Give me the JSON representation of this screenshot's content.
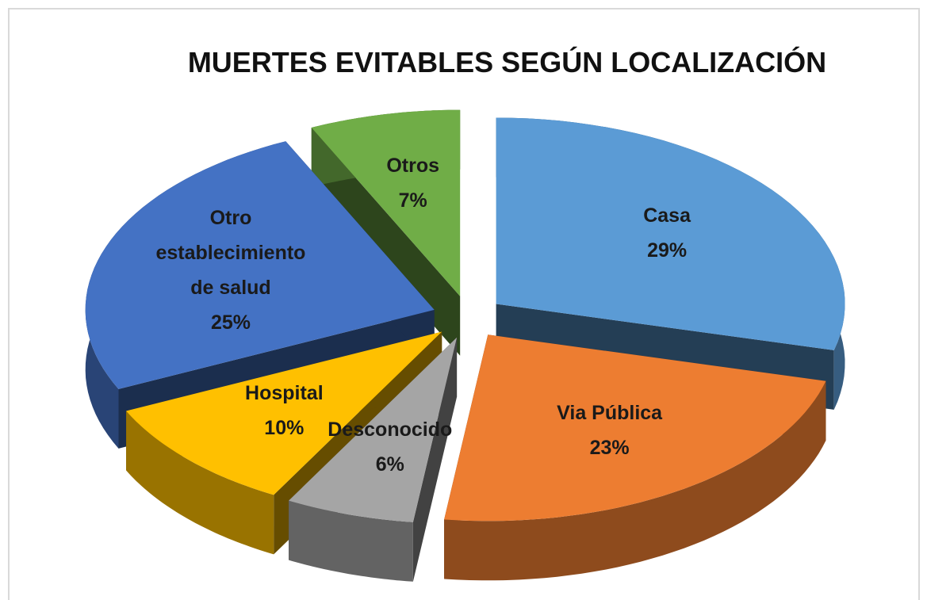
{
  "chart_data": {
    "type": "pie",
    "title": "MUERTES EVITABLES SEGÚN LOCALIZACIÓN",
    "categories": [
      "Casa",
      "Via Pública",
      "Desconocido",
      "Hospital",
      "Otro establecimiento de salud",
      "Otros"
    ],
    "values": [
      29,
      23,
      6,
      10,
      25,
      7
    ],
    "value_labels": [
      "29%",
      "23%",
      "6%",
      "10%",
      "25%",
      "7%"
    ],
    "colors": [
      "#5b9bd5",
      "#ed7d31",
      "#a5a5a5",
      "#ffc000",
      "#4472c4",
      "#70ad47"
    ],
    "style": "3d-exploded"
  }
}
